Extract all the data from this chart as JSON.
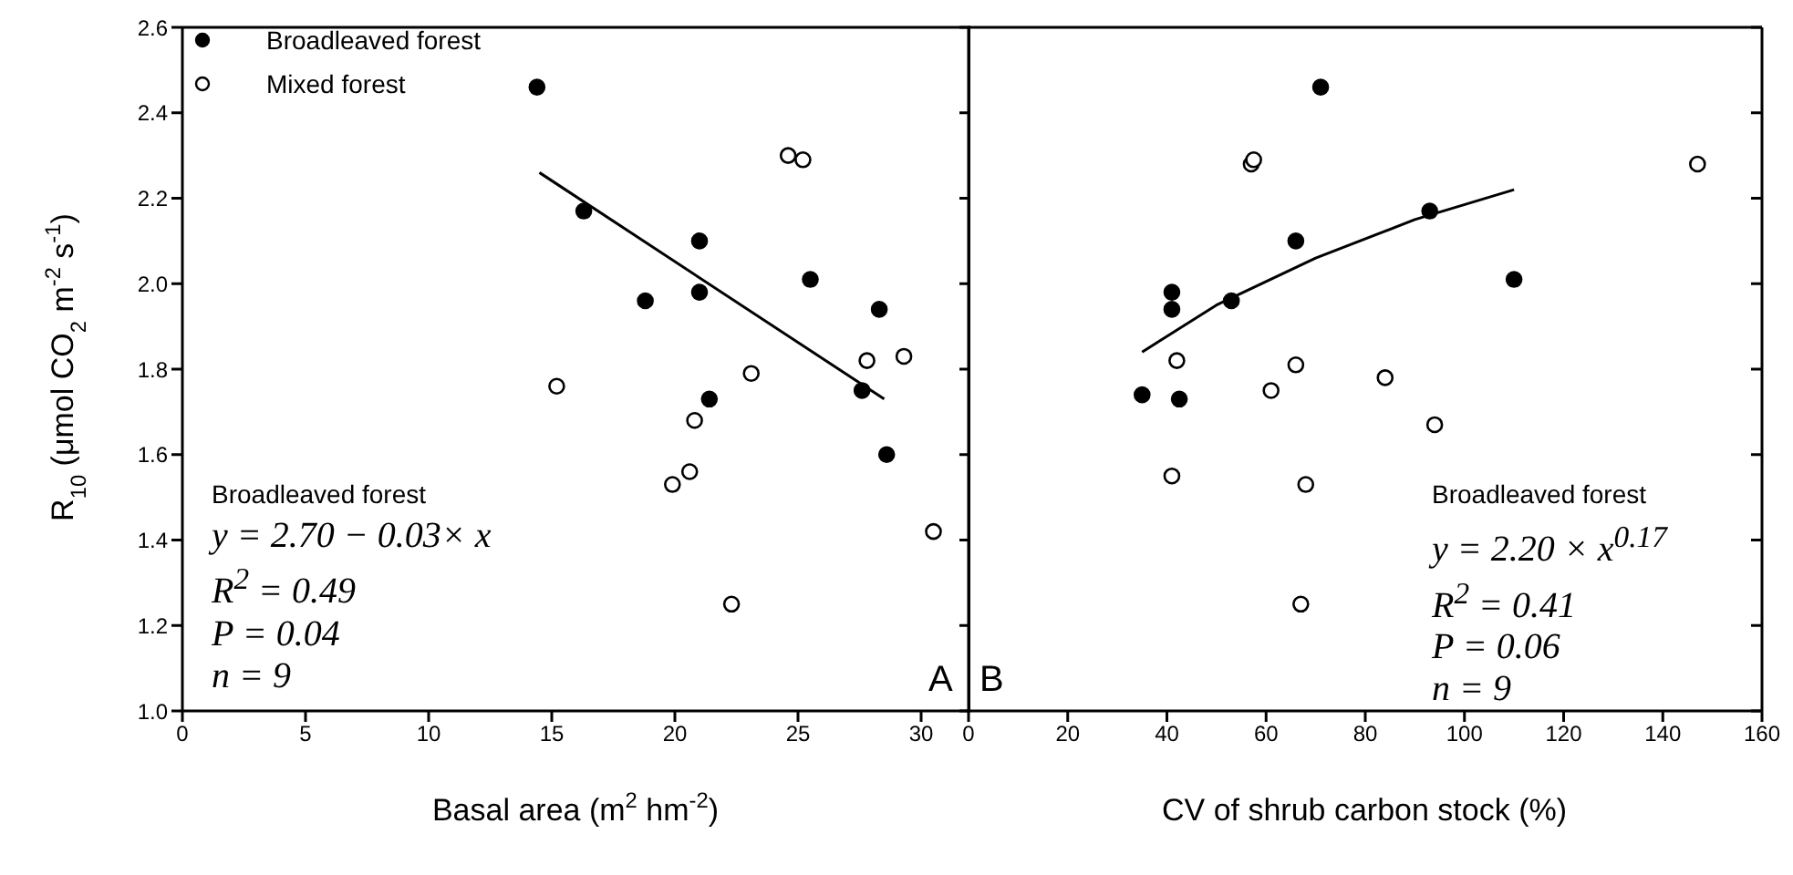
{
  "chart_data": [
    {
      "type": "scatter",
      "title": "A",
      "xlabel": "Basal area (m$^{2}$ hm$^{-2}$)",
      "ylabel": "R$_{10}$ (μmol CO$_{2}$ m$^{-2}$ s$^{-1}$)",
      "xlim": [
        0,
        32
      ],
      "xticks": [
        0,
        5,
        10,
        15,
        20,
        25,
        30
      ],
      "ylim": [
        1.0,
        2.6
      ],
      "yticks": [
        {
          "value": 1.0,
          "label": "1.0"
        },
        {
          "value": 1.2,
          "label": "1.2"
        },
        {
          "value": 1.4,
          "label": "1.4"
        },
        {
          "value": 1.6,
          "label": "1.6"
        },
        {
          "value": 1.8,
          "label": "1.8"
        },
        {
          "value": 2.0,
          "label": "2.0"
        },
        {
          "value": 2.2,
          "label": "2.2"
        },
        {
          "value": 2.4,
          "label": "2.4"
        },
        {
          "value": 2.6,
          "label": "2.6"
        }
      ],
      "legend": "top left",
      "annotations": [
        "Broadleaved forest",
        "y = 2.70 − 0.03× x",
        "R$^{2}$ = 0.49",
        "P = 0.04",
        "n = 9"
      ],
      "series": [
        {
          "name": "Broadleaved forest",
          "color": "#000000",
          "x": [
            14.4,
            16.3,
            21,
            18.8,
            21,
            25.5,
            28.3,
            21.4,
            27.6,
            28.6
          ],
          "values": [
            2.46,
            2.17,
            2.1,
            1.96,
            1.98,
            2.01,
            1.94,
            1.73,
            1.75,
            1.6
          ]
        },
        {
          "name": "Mixed forest",
          "color": "#ffffff",
          "x": [
            15.2,
            24.6,
            25.2,
            23.1,
            20.8,
            20.6,
            19.9,
            22.3,
            27.8,
            29.3,
            30.5
          ],
          "values": [
            1.76,
            2.3,
            2.29,
            1.79,
            1.68,
            1.56,
            1.53,
            1.25,
            1.82,
            1.83,
            1.42
          ]
        },
        {
          "type": "line",
          "color": "#000000",
          "x": [
            14.5,
            28.5
          ],
          "values": [
            2.26,
            1.73
          ]
        }
      ]
    },
    {
      "type": "scatter",
      "title": "B",
      "xlabel": "CV of shrub carbon stock (%)",
      "xlim": [
        0,
        160
      ],
      "xticks": [
        0,
        20,
        40,
        60,
        80,
        100,
        120,
        140,
        160
      ],
      "ylim": [
        1.0,
        2.6
      ],
      "yticks": [
        1,
        1.2,
        1.4,
        1.6,
        1.8,
        2,
        2.2,
        2.4,
        2.6
      ],
      "tick_labels": "x",
      "annotations": [
        "Broadleaved forest",
        "y = 2.20 × x$^{0.17}$",
        "R$^{2}$ = 0.41",
        "P = 0.06",
        "n = 9"
      ],
      "series": [
        {
          "color": "#000000",
          "x": [
            71,
            66,
            41,
            41,
            53,
            93,
            110,
            35,
            42.5
          ],
          "values": [
            2.46,
            2.1,
            1.98,
            1.94,
            1.96,
            2.17,
            2.01,
            1.74,
            1.73
          ]
        },
        {
          "color": "#ffffff",
          "x": [
            57,
            57.5,
            147,
            42,
            66,
            61,
            84,
            94,
            41,
            68,
            67
          ],
          "values": [
            2.28,
            2.29,
            2.28,
            1.82,
            1.81,
            1.75,
            1.78,
            1.67,
            1.55,
            1.53,
            1.25
          ]
        },
        {
          "type": "line",
          "color": "#000000",
          "x": [
            35,
            50,
            70,
            90,
            110
          ],
          "values": [
            1.84,
            1.95,
            2.06,
            2.15,
            2.22
          ]
        }
      ]
    }
  ]
}
